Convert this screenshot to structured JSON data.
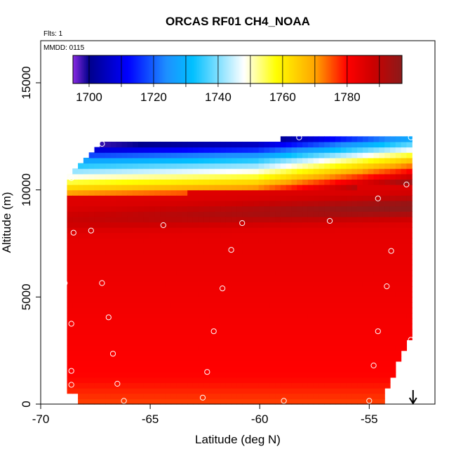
{
  "chart_data": {
    "type": "heatmap",
    "title": "ORCAS RF01 CH4_NOAA",
    "top_left_note": "Flts: 1",
    "inner_note": "MMDD: 0115",
    "xlabel": "Latitude (deg N)",
    "ylabel": "Altitude (m)",
    "xlim": [
      -70,
      -52
    ],
    "ylim": [
      0,
      17200
    ],
    "x_ticks": [
      -70,
      -65,
      -60,
      -55
    ],
    "x_tick_labels": [
      "-70",
      "-65",
      "-60",
      "-55"
    ],
    "y_ticks": [
      0,
      5000,
      10000,
      15000
    ],
    "y_tick_labels": [
      "0",
      "5000",
      "10000",
      "15000"
    ],
    "colorbar": {
      "min": 1695,
      "max": 1797,
      "ticks": [
        1700,
        1720,
        1740,
        1760,
        1780
      ],
      "tick_labels": [
        "1700",
        "1720",
        "1740",
        "1760",
        "1780"
      ],
      "divisions": [
        1700,
        1710,
        1720,
        1730,
        1740,
        1750,
        1760,
        1770,
        1780,
        1790
      ],
      "colors": [
        "#8a2be2",
        "#00008b",
        "#0000ff",
        "#1e90ff",
        "#00bfff",
        "#ffffff",
        "#ffff00",
        "#ffa500",
        "#ff0000",
        "#cc0000",
        "#8b1a1a"
      ],
      "color_stops": [
        1695,
        1700,
        1712,
        1724,
        1732,
        1748,
        1758,
        1770,
        1780,
        1788,
        1797
      ]
    },
    "field": {
      "domain_lat": [
        -68.8,
        -53.1
      ],
      "domain_alt": [
        0,
        12500
      ],
      "lat_step": 0.25,
      "alt_step": 250
    },
    "points": [
      {
        "lat": -67.2,
        "alt": 12150
      },
      {
        "lat": -68.6,
        "alt": 10550
      },
      {
        "lat": -68.5,
        "alt": 8000
      },
      {
        "lat": -67.7,
        "alt": 8100
      },
      {
        "lat": -64.4,
        "alt": 8350
      },
      {
        "lat": -60.8,
        "alt": 8450
      },
      {
        "lat": -56.8,
        "alt": 8550
      },
      {
        "lat": -54.6,
        "alt": 9600
      },
      {
        "lat": -53.3,
        "alt": 10250
      },
      {
        "lat": -53.1,
        "alt": 12450
      },
      {
        "lat": -58.2,
        "alt": 12450
      },
      {
        "lat": -61.3,
        "alt": 7200
      },
      {
        "lat": -54.0,
        "alt": 7150
      },
      {
        "lat": -67.2,
        "alt": 5650
      },
      {
        "lat": -61.7,
        "alt": 5400
      },
      {
        "lat": -54.2,
        "alt": 5500
      },
      {
        "lat": -68.9,
        "alt": 5650
      },
      {
        "lat": -68.6,
        "alt": 3750
      },
      {
        "lat": -66.9,
        "alt": 4050
      },
      {
        "lat": -62.1,
        "alt": 3400
      },
      {
        "lat": -54.6,
        "alt": 3400
      },
      {
        "lat": -53.1,
        "alt": 3000
      },
      {
        "lat": -66.7,
        "alt": 2350
      },
      {
        "lat": -68.6,
        "alt": 1550
      },
      {
        "lat": -68.6,
        "alt": 900
      },
      {
        "lat": -66.5,
        "alt": 950
      },
      {
        "lat": -62.4,
        "alt": 1500
      },
      {
        "lat": -54.8,
        "alt": 1800
      },
      {
        "lat": -66.2,
        "alt": 150
      },
      {
        "lat": -62.6,
        "alt": 300
      },
      {
        "lat": -58.9,
        "alt": 150
      },
      {
        "lat": -55.0,
        "alt": 150
      }
    ],
    "arrow_marker": {
      "lat": -53.0,
      "direction": "down"
    }
  }
}
